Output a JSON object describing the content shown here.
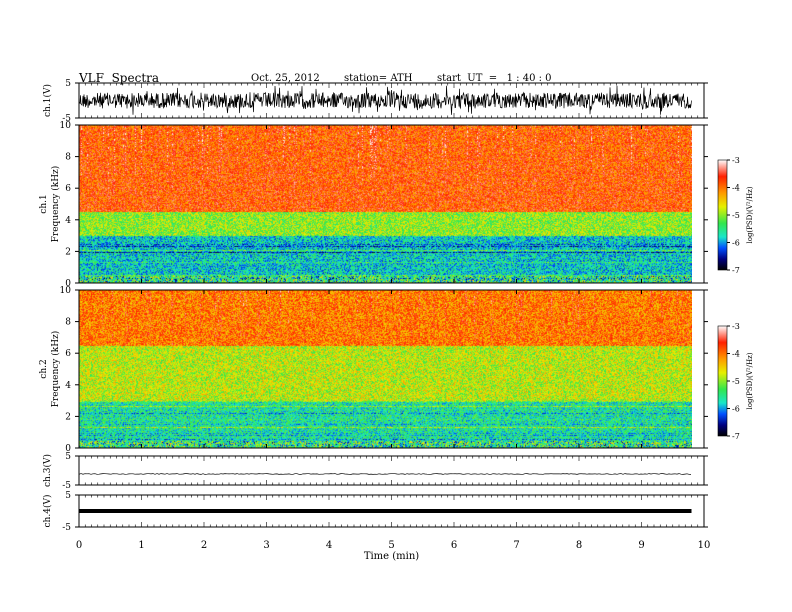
{
  "header": {
    "title": "VLF  Spectra",
    "date": "Oct. 25, 2012",
    "station": "station= ATH",
    "start": "start  UT  =   1 : 40 : 0"
  },
  "colorbar": {
    "label": "log(PSD)(V²/Hz)",
    "ticks": [
      "-3",
      "-4",
      "-5",
      "-6",
      "-7"
    ]
  },
  "palette": {
    "red": "#ff2000",
    "orange": "#ff9a00",
    "yellow": "#e6f000",
    "green": "#33e64d",
    "cyan": "#19e6c8",
    "blue": "#0050ff",
    "navy": "#000080",
    "black": "#000000",
    "white": "#ffffff"
  },
  "chart_data": [
    {
      "type": "line",
      "panel": "ch1-waveform",
      "ylabel": "ch.1(V)",
      "ylim": [
        -5,
        5
      ],
      "y_ticks": [
        "5",
        "-5"
      ],
      "xlim": [
        0,
        10
      ],
      "series": [
        {
          "description": "noisy waveform, amplitude about -3.5 to 3.5 V"
        }
      ]
    },
    {
      "type": "heatmap",
      "panel": "ch1-spectrogram",
      "ylabel": "Frequency (kHz)",
      "channel_label": "ch.1",
      "ylim": [
        0,
        10
      ],
      "y_ticks": [
        "0",
        "2",
        "4",
        "6",
        "8",
        "10"
      ],
      "x_data_end_min": 9.8,
      "z_label": "log(PSD)(V²/Hz)",
      "zlim": [
        -7,
        -3
      ],
      "band_profile": [
        {
          "freq_khz": [
            0,
            0.5
          ],
          "dominant_logpsd": -5.5
        },
        {
          "freq_khz": [
            0.5,
            3
          ],
          "dominant_logpsd": -5.8
        },
        {
          "freq_khz": [
            3,
            4.5
          ],
          "dominant_logpsd": -5.0
        },
        {
          "freq_khz": [
            4.5,
            10
          ],
          "dominant_logpsd": -3.8
        }
      ]
    },
    {
      "type": "heatmap",
      "panel": "ch2-spectrogram",
      "ylabel": "Frequency (kHz)",
      "channel_label": "ch.2",
      "ylim": [
        0,
        10
      ],
      "y_ticks": [
        "0",
        "2",
        "4",
        "6",
        "8",
        "10"
      ],
      "x_data_end_min": 9.8,
      "z_label": "log(PSD)(V²/Hz)",
      "zlim": [
        -7,
        -3
      ],
      "band_profile": [
        {
          "freq_khz": [
            0,
            0.5
          ],
          "dominant_logpsd": -5.5
        },
        {
          "freq_khz": [
            0.5,
            3
          ],
          "dominant_logpsd": -5.6
        },
        {
          "freq_khz": [
            3,
            6.5
          ],
          "dominant_logpsd": -4.8
        },
        {
          "freq_khz": [
            6.5,
            10
          ],
          "dominant_logpsd": -4.0
        }
      ]
    },
    {
      "type": "line",
      "panel": "ch3-waveform",
      "ylabel": "ch.3(V)",
      "ylim": [
        -5,
        5
      ],
      "y_ticks": [
        "5",
        "-5"
      ],
      "series": [
        {
          "description": "flat trace near 0 V"
        }
      ]
    },
    {
      "type": "line",
      "panel": "ch4-waveform",
      "ylabel": "ch.4(V)",
      "ylim": [
        -5,
        5
      ],
      "y_ticks": [
        "5",
        "-5"
      ],
      "series": [
        {
          "description": "thick flat trace near 0 V"
        }
      ]
    },
    {
      "type": "axis",
      "panel": "time-axis",
      "xlabel": "Time  (min)",
      "xlim": [
        0,
        10
      ],
      "x_ticks": [
        "0",
        "1",
        "2",
        "3",
        "4",
        "5",
        "6",
        "7",
        "8",
        "9",
        "10"
      ]
    }
  ]
}
